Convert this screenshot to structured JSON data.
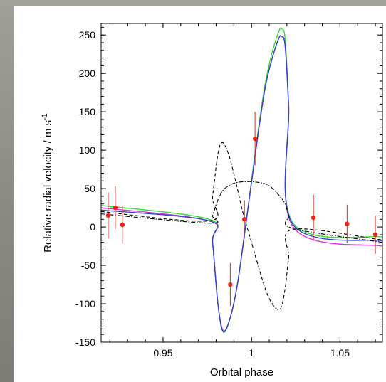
{
  "chart_data": {
    "type": "line",
    "title": "",
    "xlabel": "Orbital phase",
    "ylabel": "Relative radial velocity / m s",
    "ylabel_superscript": "-1",
    "xlim": [
      0.915,
      1.074
    ],
    "ylim": [
      -150,
      265
    ],
    "x_ticks": [
      0.95,
      1,
      1.05
    ],
    "x_tick_labels": [
      "0.95",
      "1",
      "1.05"
    ],
    "y_ticks": [
      -150,
      -100,
      -50,
      0,
      50,
      100,
      150,
      200,
      250
    ],
    "y_tick_labels": [
      "-150",
      "-100",
      "-50",
      "0",
      "50",
      "100",
      "150",
      "200",
      "250"
    ],
    "grid": false,
    "legend": "none",
    "series": [
      {
        "style": "solid",
        "color": "#33dd33",
        "x": [
          0.915,
          0.976,
          0.978,
          0.981,
          0.984,
          0.988,
          0.992,
          0.996,
          1.0,
          1.004,
          1.008,
          1.012,
          1.0155,
          1.017,
          1.019,
          1.021,
          1.0235,
          1.074
        ],
        "y": [
          28,
          10,
          -20,
          -100,
          -137,
          -118,
          -75,
          -10,
          60,
          130,
          190,
          230,
          255,
          258,
          245,
          160,
          5,
          -13
        ]
      },
      {
        "style": "solid",
        "color": "#dd33dd",
        "x": [
          0.915,
          0.976,
          0.978,
          0.981,
          0.984,
          0.988,
          0.992,
          0.996,
          1.0,
          1.004,
          1.008,
          1.012,
          1.0155,
          1.017,
          1.019,
          1.021,
          1.0235,
          1.074
        ],
        "y": [
          25,
          8,
          -20,
          -100,
          -135,
          -118,
          -75,
          -10,
          58,
          126,
          185,
          222,
          246,
          248,
          236,
          155,
          0,
          -25
        ]
      },
      {
        "style": "solid",
        "color": "#3344cc",
        "x": [
          0.915,
          0.976,
          0.978,
          0.981,
          0.984,
          0.988,
          0.992,
          0.996,
          1.0,
          1.004,
          1.008,
          1.012,
          1.0155,
          1.017,
          1.019,
          1.021,
          1.0235,
          1.074
        ],
        "y": [
          22,
          8,
          -20,
          -100,
          -136,
          -118,
          -75,
          -10,
          58,
          126,
          185,
          222,
          246,
          248,
          236,
          155,
          3,
          -18
        ]
      },
      {
        "style": "dashed",
        "color": "#000000",
        "x": [
          0.915,
          0.976,
          0.978,
          0.981,
          0.9835,
          0.987,
          0.991,
          0.995,
          1.0,
          1.005,
          1.009,
          1.013,
          1.0165,
          1.019,
          1.021,
          1.0235,
          1.074
        ],
        "y": [
          20,
          8,
          40,
          95,
          110,
          95,
          60,
          20,
          -20,
          -60,
          -88,
          -104,
          -106,
          -80,
          -40,
          -3,
          -17
        ]
      },
      {
        "style": "dashdot",
        "color": "#000000",
        "x": [
          0.915,
          0.976,
          0.978,
          0.981,
          0.984,
          0.988,
          0.992,
          0.996,
          1.0,
          1.004,
          1.008,
          1.012,
          1.016,
          1.019,
          1.021,
          1.0235,
          1.074
        ],
        "y": [
          17,
          5,
          15,
          35,
          48,
          55,
          58,
          59,
          59,
          58,
          56,
          50,
          40,
          30,
          15,
          -2,
          -20
        ]
      }
    ],
    "points": {
      "color": "#ee2211",
      "x": [
        0.919,
        0.923,
        0.927,
        0.988,
        0.996,
        1.002,
        1.035,
        1.054,
        1.07
      ],
      "y": [
        15,
        25,
        3,
        -75,
        10,
        115,
        12,
        4,
        -10
      ],
      "err": [
        30,
        28,
        25,
        28,
        25,
        35,
        30,
        25,
        25
      ]
    }
  }
}
